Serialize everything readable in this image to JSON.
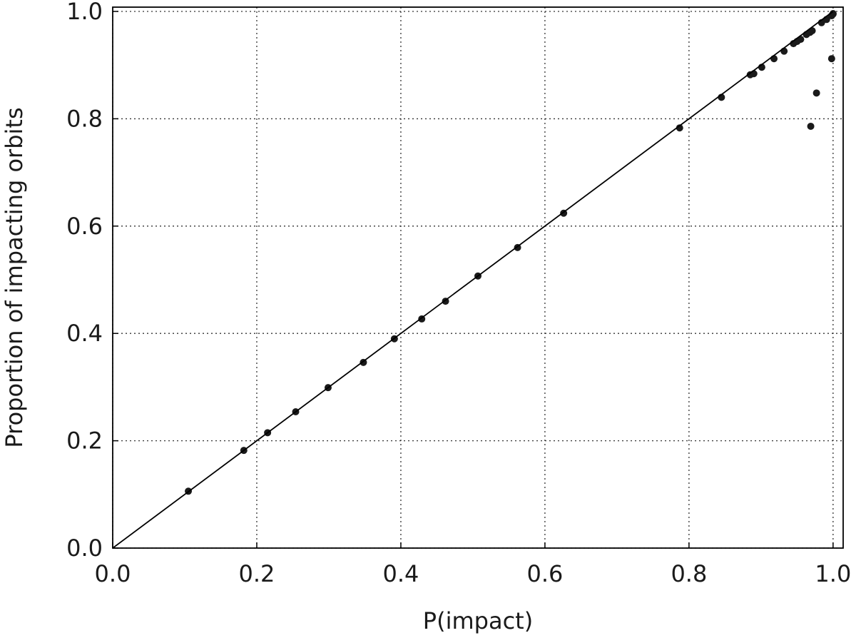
{
  "chart_data": {
    "type": "scatter",
    "xlabel": "P(impact)",
    "ylabel": "Proportion of impacting orbits",
    "xlim": [
      0,
      1.014
    ],
    "ylim": [
      0,
      1.008
    ],
    "xticks": [
      {
        "value": 0,
        "label": "0.0"
      },
      0.2,
      0.4,
      0.6,
      0.8,
      {
        "value": 1,
        "label": "1.0"
      }
    ],
    "yticks": [
      {
        "value": 0,
        "label": "0.0"
      },
      0.2,
      0.4,
      0.6,
      0.8,
      {
        "value": 1,
        "label": "1.0"
      }
    ],
    "grid": true,
    "series": [
      {
        "type": "scatter",
        "color": "#1a1a1a",
        "x": [
          0.105,
          0.182,
          0.215,
          0.254,
          0.299,
          0.348,
          0.391,
          0.429,
          0.462,
          0.507,
          0.562,
          0.626,
          0.787,
          0.845,
          0.885,
          0.89,
          0.901,
          0.918,
          0.932,
          0.945,
          0.95,
          0.955,
          0.963,
          0.968,
          0.971,
          0.984,
          0.991,
          0.998,
          1.0,
          1.0,
          0.998,
          0.977,
          0.969
        ],
        "values": [
          0.106,
          0.182,
          0.215,
          0.254,
          0.299,
          0.346,
          0.39,
          0.427,
          0.46,
          0.507,
          0.56,
          0.624,
          0.783,
          0.84,
          0.882,
          0.884,
          0.896,
          0.912,
          0.926,
          0.94,
          0.944,
          0.948,
          0.957,
          0.961,
          0.964,
          0.979,
          0.985,
          0.992,
          0.995,
          0.996,
          0.912,
          0.848,
          0.786
        ]
      },
      {
        "type": "line",
        "color": "#000000",
        "x": [
          0,
          1
        ],
        "values": [
          0,
          1
        ]
      }
    ]
  }
}
